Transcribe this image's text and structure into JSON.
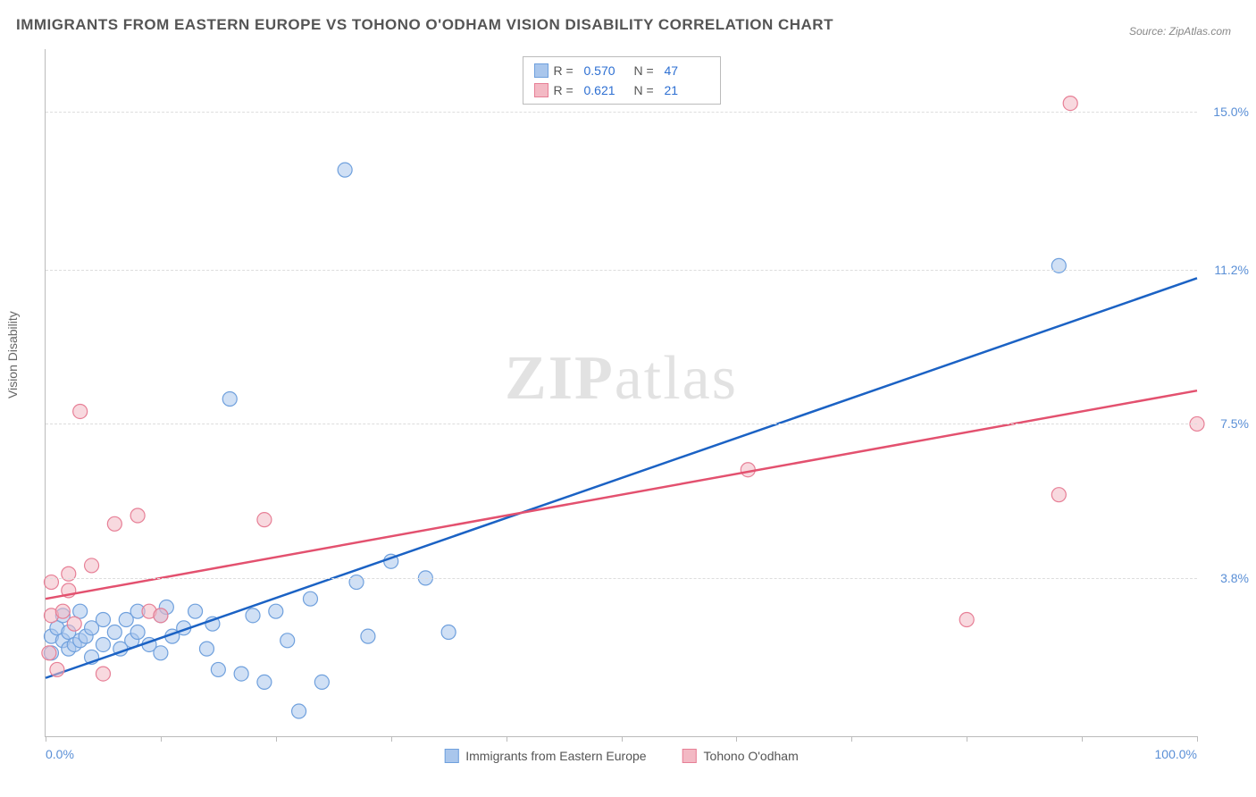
{
  "title": "IMMIGRANTS FROM EASTERN EUROPE VS TOHONO O'ODHAM VISION DISABILITY CORRELATION CHART",
  "source_label": "Source:",
  "source_value": "ZipAtlas.com",
  "watermark_a": "ZIP",
  "watermark_b": "atlas",
  "y_axis_label": "Vision Disability",
  "chart": {
    "type": "scatter",
    "xlim": [
      0,
      100
    ],
    "ylim": [
      0,
      16.5
    ],
    "x_ticks": [
      0,
      10,
      20,
      30,
      40,
      50,
      60,
      70,
      80,
      90,
      100
    ],
    "x_tick_labels": {
      "0": "0.0%",
      "100": "100.0%"
    },
    "y_gridlines": [
      3.8,
      7.5,
      11.2,
      15.0
    ],
    "y_tick_labels": [
      "3.8%",
      "7.5%",
      "11.2%",
      "15.0%"
    ],
    "background_color": "#ffffff",
    "grid_color": "#dddddd",
    "axis_color": "#bbbbbb",
    "marker_radius": 8,
    "marker_opacity": 0.55,
    "series": [
      {
        "name": "Immigrants from Eastern Europe",
        "color_fill": "#a9c6ec",
        "color_stroke": "#6fa0dd",
        "r_value": "0.570",
        "n_value": "47",
        "trend": {
          "x1": 0,
          "y1": 1.4,
          "x2": 100,
          "y2": 11.0,
          "color": "#1b62c4",
          "width": 2.5
        },
        "points": [
          [
            0.5,
            2.0
          ],
          [
            0.5,
            2.4
          ],
          [
            1.0,
            2.6
          ],
          [
            1.5,
            2.3
          ],
          [
            1.5,
            2.9
          ],
          [
            2.0,
            2.1
          ],
          [
            2.0,
            2.5
          ],
          [
            2.5,
            2.2
          ],
          [
            3.0,
            3.0
          ],
          [
            3.0,
            2.3
          ],
          [
            3.5,
            2.4
          ],
          [
            4.0,
            2.6
          ],
          [
            4.0,
            1.9
          ],
          [
            5.0,
            2.2
          ],
          [
            5.0,
            2.8
          ],
          [
            6.0,
            2.5
          ],
          [
            6.5,
            2.1
          ],
          [
            7.0,
            2.8
          ],
          [
            7.5,
            2.3
          ],
          [
            8.0,
            2.5
          ],
          [
            8.0,
            3.0
          ],
          [
            9.0,
            2.2
          ],
          [
            10.0,
            2.9
          ],
          [
            10.0,
            2.0
          ],
          [
            10.5,
            3.1
          ],
          [
            11.0,
            2.4
          ],
          [
            12.0,
            2.6
          ],
          [
            13.0,
            3.0
          ],
          [
            14.0,
            2.1
          ],
          [
            14.5,
            2.7
          ],
          [
            15.0,
            1.6
          ],
          [
            16.0,
            8.1
          ],
          [
            17.0,
            1.5
          ],
          [
            18.0,
            2.9
          ],
          [
            19.0,
            1.3
          ],
          [
            20.0,
            3.0
          ],
          [
            21.0,
            2.3
          ],
          [
            22.0,
            0.6
          ],
          [
            23.0,
            3.3
          ],
          [
            24.0,
            1.3
          ],
          [
            26.0,
            13.6
          ],
          [
            27.0,
            3.7
          ],
          [
            28.0,
            2.4
          ],
          [
            30.0,
            4.2
          ],
          [
            33.0,
            3.8
          ],
          [
            35.0,
            2.5
          ],
          [
            88.0,
            11.3
          ]
        ]
      },
      {
        "name": "Tohono O'odham",
        "color_fill": "#f3b9c4",
        "color_stroke": "#e77f96",
        "r_value": "0.621",
        "n_value": "21",
        "trend": {
          "x1": 0,
          "y1": 3.3,
          "x2": 100,
          "y2": 8.3,
          "color": "#e3516f",
          "width": 2.5
        },
        "points": [
          [
            0.3,
            2.0
          ],
          [
            0.5,
            2.9
          ],
          [
            0.5,
            3.7
          ],
          [
            1.0,
            1.6
          ],
          [
            1.5,
            3.0
          ],
          [
            2.0,
            3.9
          ],
          [
            2.0,
            3.5
          ],
          [
            2.5,
            2.7
          ],
          [
            3.0,
            7.8
          ],
          [
            4.0,
            4.1
          ],
          [
            5.0,
            1.5
          ],
          [
            6.0,
            5.1
          ],
          [
            8.0,
            5.3
          ],
          [
            9.0,
            3.0
          ],
          [
            10.0,
            2.9
          ],
          [
            19.0,
            5.2
          ],
          [
            61.0,
            6.4
          ],
          [
            80.0,
            2.8
          ],
          [
            88.0,
            5.8
          ],
          [
            89.0,
            15.2
          ],
          [
            100.0,
            7.5
          ]
        ]
      }
    ]
  },
  "legend_top": {
    "r_label": "R =",
    "n_label": "N ="
  }
}
